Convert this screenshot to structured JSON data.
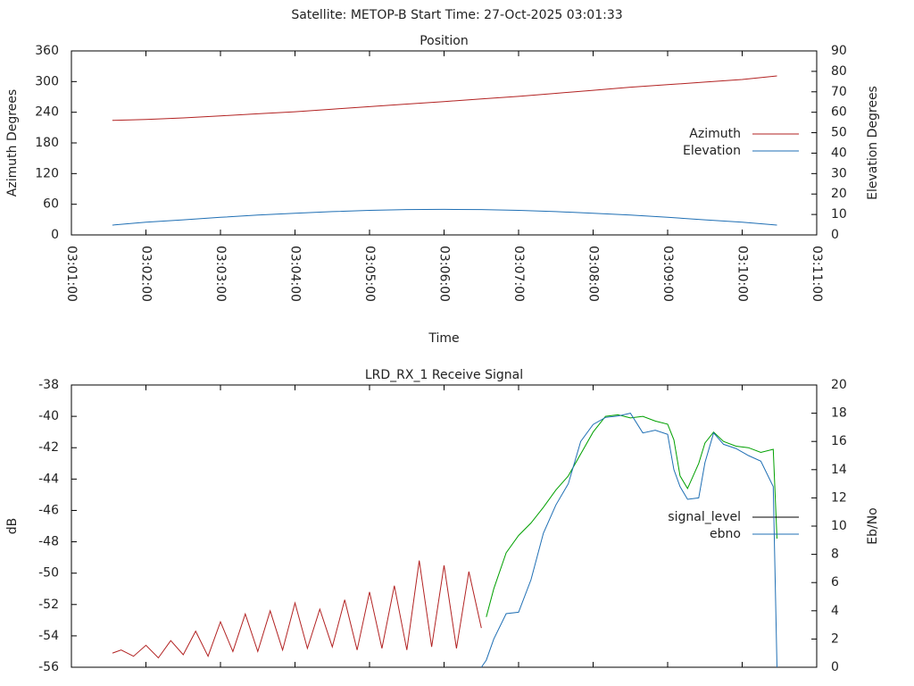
{
  "chart_data": [
    {
      "type": "line",
      "suptitle": "Satellite: METOP-B    Start Time: 27-Oct-2025 03:01:33",
      "title": "Position",
      "xlabel": "Time",
      "ylabel": "Azimuth Degrees",
      "y2label": "Elevation Degrees",
      "x": [
        "03:01:33",
        "03:02:00",
        "03:02:30",
        "03:03:00",
        "03:03:30",
        "03:04:00",
        "03:04:30",
        "03:05:00",
        "03:05:30",
        "03:06:00",
        "03:06:30",
        "03:07:00",
        "03:07:30",
        "03:08:00",
        "03:08:30",
        "03:09:00",
        "03:09:30",
        "03:10:00",
        "03:10:28"
      ],
      "xlim": [
        "03:01:00",
        "03:11:00"
      ],
      "xticks": [
        "03:01:00",
        "03:02:00",
        "03:03:00",
        "03:04:00",
        "03:05:00",
        "03:06:00",
        "03:07:00",
        "03:08:00",
        "03:09:00",
        "03:10:00",
        "03:11:00"
      ],
      "xtick_labels": true,
      "ylim": [
        0,
        360
      ],
      "yticks": [
        0,
        60,
        120,
        180,
        240,
        300,
        360
      ],
      "y2lim": [
        0,
        90
      ],
      "y2ticks": [
        0,
        10,
        20,
        30,
        40,
        50,
        60,
        70,
        80,
        90
      ],
      "legend": "right",
      "series": [
        {
          "name": "Azimuth",
          "color": "#b22222",
          "axis": "y",
          "values": [
            224,
            226,
            229,
            233,
            237,
            241,
            246,
            251,
            256,
            261,
            266,
            271,
            277,
            283,
            289,
            294,
            299,
            304,
            311
          ]
        },
        {
          "name": "Elevation",
          "color": "#1f6fb4",
          "axis": "y2",
          "values": [
            4.8,
            6.2,
            7.4,
            8.6,
            9.7,
            10.6,
            11.4,
            12.0,
            12.4,
            12.5,
            12.4,
            12.0,
            11.4,
            10.6,
            9.7,
            8.6,
            7.4,
            6.2,
            4.8
          ]
        }
      ]
    },
    {
      "type": "line",
      "title": "LRD_RX_1 Receive Signal",
      "ylabel": "dB",
      "y2label": "Eb/No",
      "x": [
        "03:01:33",
        "03:01:40",
        "03:01:50",
        "03:02:00",
        "03:02:10",
        "03:02:20",
        "03:02:30",
        "03:02:40",
        "03:02:50",
        "03:03:00",
        "03:03:10",
        "03:03:20",
        "03:03:30",
        "03:03:40",
        "03:03:50",
        "03:04:00",
        "03:04:10",
        "03:04:20",
        "03:04:30",
        "03:04:40",
        "03:04:50",
        "03:05:00",
        "03:05:10",
        "03:05:20",
        "03:05:30",
        "03:05:40",
        "03:05:50",
        "03:06:00",
        "03:06:10",
        "03:06:20",
        "03:06:30",
        "03:06:34",
        "03:06:40",
        "03:06:50",
        "03:07:00",
        "03:07:10",
        "03:07:20",
        "03:07:30",
        "03:07:40",
        "03:07:50",
        "03:08:00",
        "03:08:10",
        "03:08:20",
        "03:08:30",
        "03:08:40",
        "03:08:50",
        "03:09:00",
        "03:09:05",
        "03:09:10",
        "03:09:16",
        "03:09:25",
        "03:09:30",
        "03:09:37",
        "03:09:45",
        "03:09:55",
        "03:10:05",
        "03:10:15",
        "03:10:25",
        "03:10:28"
      ],
      "xlim": [
        "03:01:00",
        "03:11:00"
      ],
      "xticks": [
        "03:01:00",
        "03:02:00",
        "03:03:00",
        "03:04:00",
        "03:05:00",
        "03:06:00",
        "03:07:00",
        "03:08:00",
        "03:09:00",
        "03:10:00",
        "03:11:00"
      ],
      "xtick_labels": false,
      "ylim": [
        -56,
        -38
      ],
      "yticks": [
        -56,
        -54,
        -52,
        -50,
        -48,
        -46,
        -44,
        -42,
        -40,
        -38
      ],
      "y2lim": [
        0,
        20
      ],
      "y2ticks": [
        0,
        2,
        4,
        6,
        8,
        10,
        12,
        14,
        16,
        18,
        20
      ],
      "legend": "right",
      "series": [
        {
          "name": "signal_level",
          "color": "#000000",
          "axis": "y",
          "line_colors": [
            "#b22222",
            "#00a000"
          ],
          "color_change_x": "03:06:34",
          "values": [
            -55.1,
            -54.9,
            -55.3,
            -54.6,
            -55.4,
            -54.3,
            -55.2,
            -53.7,
            -55.3,
            -53.1,
            -55.0,
            -52.6,
            -55.0,
            -52.4,
            -54.9,
            -51.9,
            -54.8,
            -52.3,
            -54.7,
            -51.7,
            -54.9,
            -51.2,
            -54.8,
            -50.8,
            -54.9,
            -49.2,
            -54.7,
            -49.5,
            -54.8,
            -49.9,
            -53.5,
            -52.8,
            -51.0,
            -48.7,
            -47.6,
            -46.8,
            -45.8,
            -44.7,
            -43.8,
            -42.4,
            -41.0,
            -40.0,
            -39.9,
            -40.1,
            -40.0,
            -40.3,
            -40.5,
            -41.5,
            -43.8,
            -44.6,
            -43.0,
            -41.7,
            -41.0,
            -41.6,
            -41.9,
            -42.0,
            -42.3,
            -42.1,
            -47.8
          ]
        },
        {
          "name": "ebno",
          "color": "#1f6fb4",
          "axis": "y2",
          "values": [
            null,
            null,
            null,
            null,
            null,
            null,
            null,
            null,
            null,
            null,
            null,
            null,
            null,
            null,
            null,
            null,
            null,
            null,
            null,
            null,
            null,
            null,
            null,
            null,
            null,
            null,
            null,
            null,
            null,
            null,
            0,
            0.5,
            2.0,
            3.8,
            3.9,
            6.2,
            9.5,
            11.5,
            13.0,
            16.0,
            17.2,
            17.7,
            17.8,
            18.0,
            16.6,
            16.8,
            16.5,
            14.0,
            12.8,
            11.9,
            12.0,
            14.5,
            16.6,
            15.8,
            15.5,
            15.0,
            14.6,
            12.8,
            0
          ]
        }
      ]
    }
  ]
}
